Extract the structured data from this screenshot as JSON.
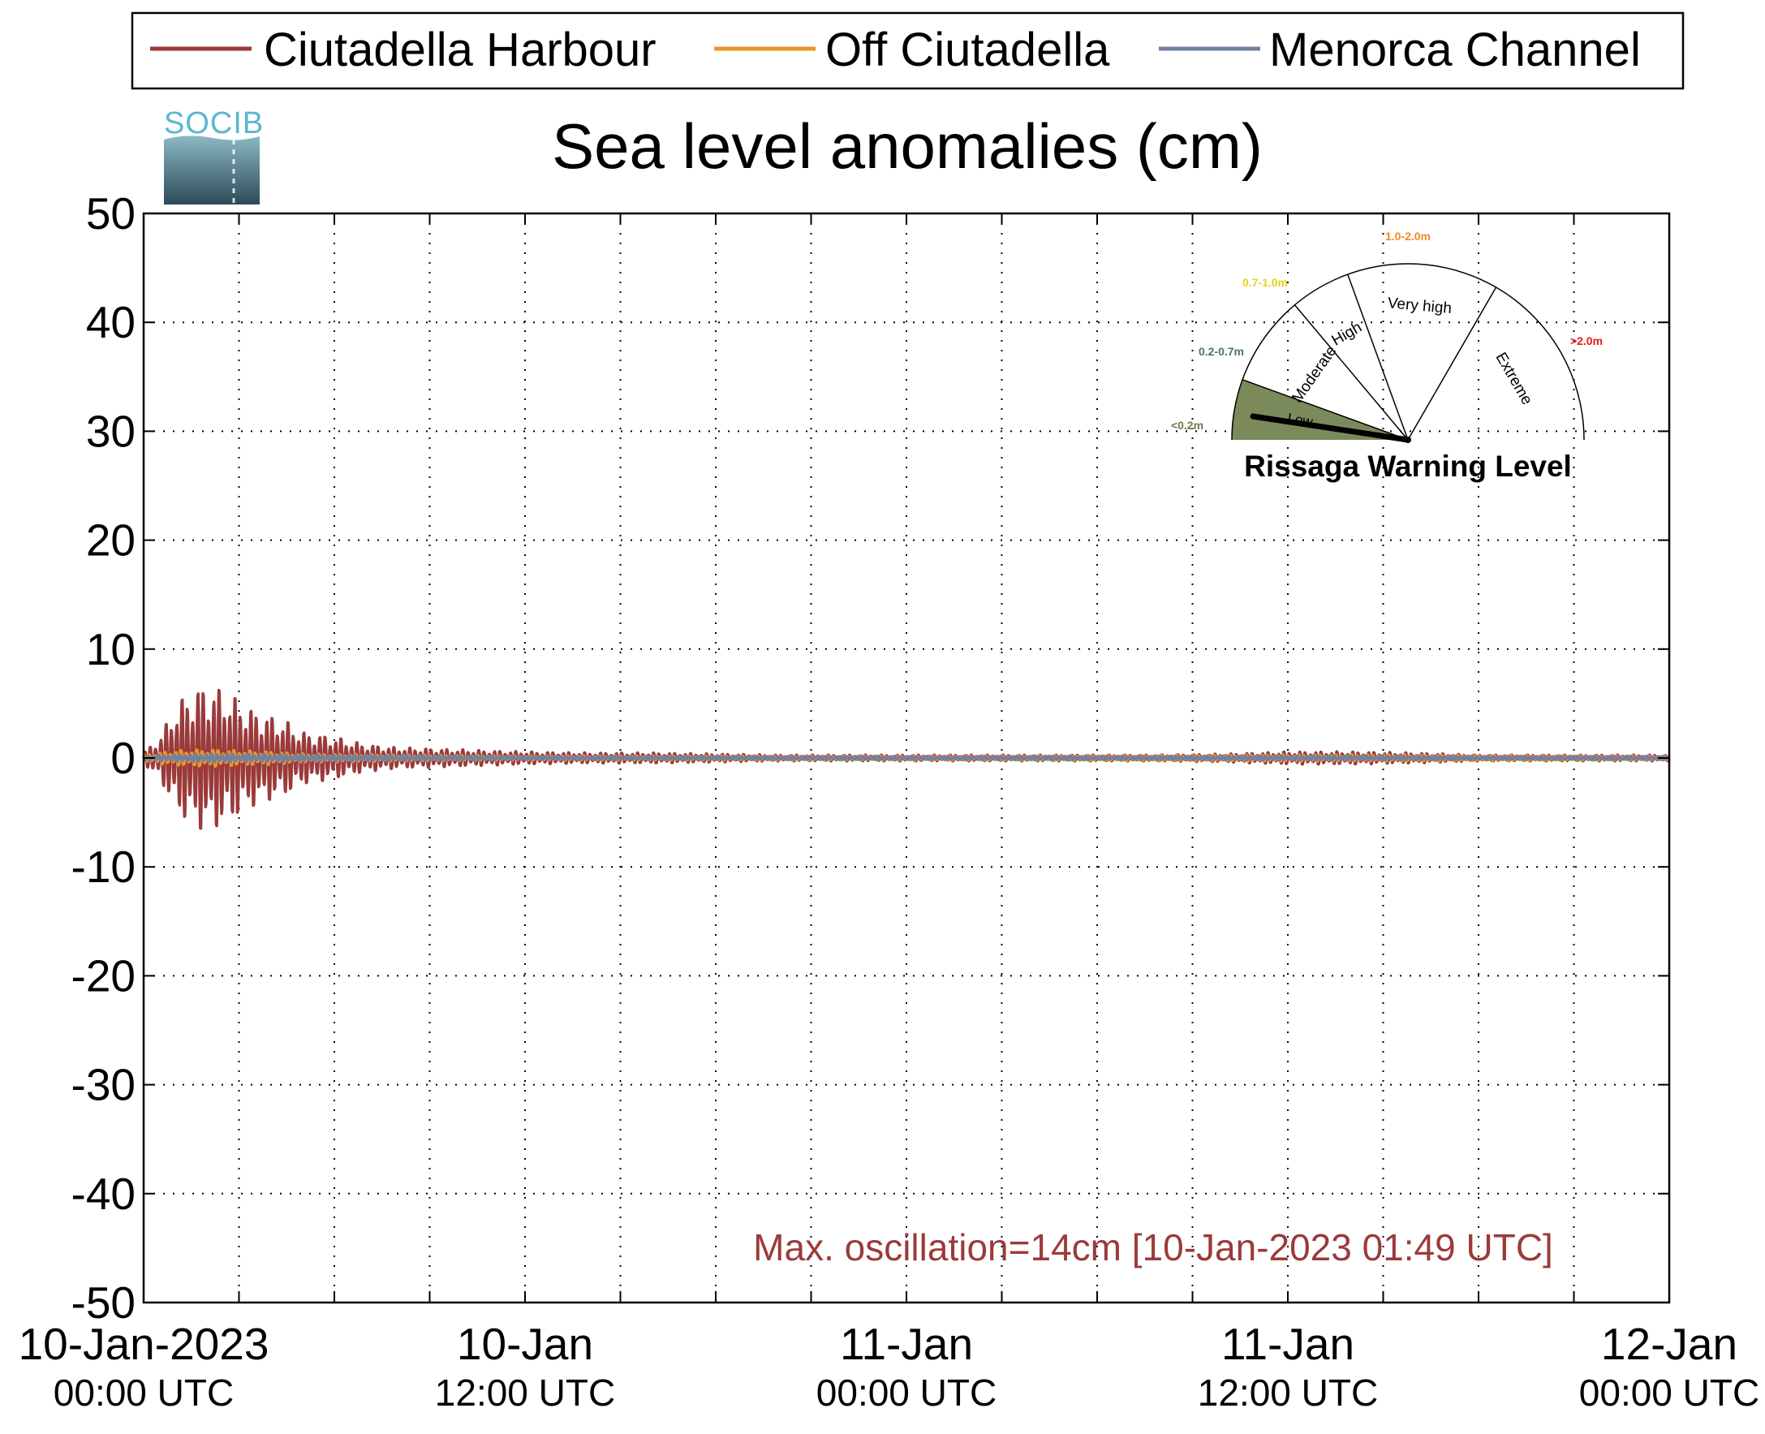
{
  "chart_data": {
    "type": "line",
    "title": "Sea level anomalies (cm)",
    "xlabel": "",
    "ylabel": "",
    "ylim": [
      -50,
      50
    ],
    "yticks": [
      50,
      40,
      30,
      20,
      10,
      0,
      -10,
      -20,
      -30,
      -40,
      -50
    ],
    "xlim_hours": [
      0,
      48
    ],
    "x_tick_labels": [
      {
        "hour": 0,
        "line1": "10-Jan-2023",
        "line2": "00:00 UTC"
      },
      {
        "hour": 12,
        "line1": "10-Jan",
        "line2": "12:00 UTC"
      },
      {
        "hour": 24,
        "line1": "11-Jan",
        "line2": "00:00 UTC"
      },
      {
        "hour": 36,
        "line1": "11-Jan",
        "line2": "12:00 UTC"
      },
      {
        "hour": 48,
        "line1": "12-Jan",
        "line2": "00:00 UTC"
      }
    ],
    "grid": true,
    "legend_position": "top",
    "series": [
      {
        "name": "Ciutadella Harbour",
        "color": "#9b3a3a",
        "envelope_hours": [
          0,
          0.5,
          1,
          1.5,
          2,
          2.5,
          3,
          3.5,
          4,
          4.5,
          5,
          6,
          7,
          8,
          9,
          10,
          12,
          14,
          16,
          18,
          20,
          24,
          28,
          32,
          34,
          36,
          38,
          40,
          42,
          44,
          46,
          48
        ],
        "envelope_amp_cm": [
          0.5,
          2,
          5,
          6.5,
          7,
          6.5,
          5.5,
          4.5,
          4,
          3.5,
          2.5,
          2,
          1.3,
          1,
          0.9,
          0.8,
          0.6,
          0.5,
          0.5,
          0.4,
          0.3,
          0.3,
          0.3,
          0.3,
          0.4,
          0.6,
          0.6,
          0.5,
          0.3,
          0.3,
          0.3,
          0.3
        ],
        "oscillation_period_min": 10
      },
      {
        "name": "Off Ciutadella",
        "color": "#e8962a",
        "envelope_hours": [
          0,
          1,
          2,
          3,
          4,
          5,
          8,
          12,
          24,
          36,
          40,
          48
        ],
        "envelope_amp_cm": [
          0.3,
          0.7,
          0.8,
          0.7,
          0.6,
          0.4,
          0.3,
          0.2,
          0.2,
          0.3,
          0.3,
          0.2
        ],
        "oscillation_period_min": 10
      },
      {
        "name": "Menorca Channel",
        "color": "#7380a0",
        "envelope_hours": [
          0,
          2,
          5,
          12,
          24,
          36,
          48
        ],
        "envelope_amp_cm": [
          0.2,
          0.4,
          0.3,
          0.15,
          0.15,
          0.2,
          0.15
        ],
        "oscillation_period_min": 10
      }
    ],
    "annotation": "Max. oscillation=14cm [10-Jan-2023 01:49 UTC]",
    "annotation_color": "#9b3a3a"
  },
  "logo": {
    "text": "SOCIB"
  },
  "gauge": {
    "title": "Rissaga Warning Level",
    "sectors": [
      {
        "name": "Low",
        "range": "<0.2m",
        "range_color": "#6b7d4a"
      },
      {
        "name": "Moderate",
        "range": "0.2-0.7m",
        "range_color": "#4f6f76"
      },
      {
        "name": "High",
        "range": "0.7-1.0m",
        "range_color": "#e6d21a"
      },
      {
        "name": "Very high",
        "range": "1.0-2.0m",
        "range_color": "#f08a1c"
      },
      {
        "name": "Extreme",
        "range": ">2.0m",
        "range_color": "#e41a1a"
      }
    ],
    "active_sector": "Low",
    "active_fill": "#7b8a5b"
  }
}
